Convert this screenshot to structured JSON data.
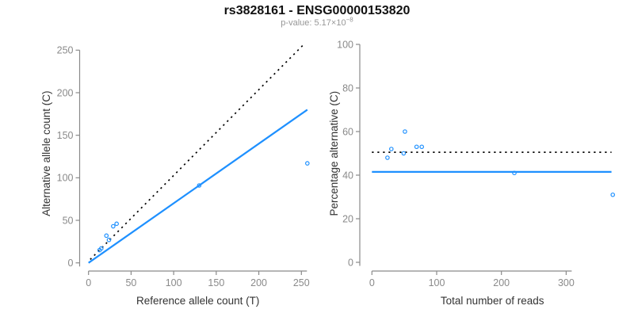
{
  "header": {
    "title": "rs3828161 - ENSG00000153820",
    "p_value": {
      "text": "p-value: 5.17×10",
      "exponent": "−8"
    }
  },
  "colors": {
    "accent_blue": "#1E90FF",
    "line_black": "#000000",
    "axis_gray": "#8A8A8A",
    "tick_label_gray": "#8A8A8A",
    "axis_title_gray": "#333333",
    "subtitle_gray": "#979797"
  },
  "chart_data": [
    {
      "type": "scatter",
      "panel": "allele-counts",
      "xlabel": "Reference allele count (T)",
      "ylabel": "Alternative allele count (C)",
      "xlim": [
        0,
        257
      ],
      "ylim": [
        0,
        257
      ],
      "xticks": [
        0,
        50,
        100,
        150,
        200,
        250
      ],
      "yticks": [
        0,
        50,
        100,
        150,
        200,
        250
      ],
      "grid": false,
      "points": [
        [
          13,
          15
        ],
        [
          15,
          17
        ],
        [
          21,
          32
        ],
        [
          24,
          27
        ],
        [
          29,
          43
        ],
        [
          33,
          46
        ],
        [
          130,
          91
        ],
        [
          257,
          117
        ]
      ],
      "point_style": {
        "marker": "open-circle",
        "color": "#1E90FF"
      },
      "lines": [
        {
          "name": "identity-line",
          "style": "dotted",
          "color": "#000000",
          "from": [
            2,
            4
          ],
          "to": [
            254,
            258
          ]
        },
        {
          "name": "regression-line",
          "style": "solid",
          "color": "#1E90FF",
          "from": [
            0,
            0
          ],
          "to": [
            257,
            180
          ]
        }
      ]
    },
    {
      "type": "scatter",
      "panel": "percentage-vs-coverage",
      "xlabel": "Total number of reads",
      "ylabel": "Percentage alternative (C)",
      "xlim": [
        0,
        372
      ],
      "ylim": [
        0,
        100
      ],
      "xticks": [
        0,
        100,
        200,
        300
      ],
      "yticks": [
        0,
        20,
        40,
        60,
        80,
        100
      ],
      "grid": false,
      "points": [
        [
          24,
          48
        ],
        [
          30,
          52
        ],
        [
          49,
          50
        ],
        [
          51,
          60
        ],
        [
          69,
          53
        ],
        [
          77,
          53
        ],
        [
          220,
          41
        ],
        [
          372,
          31
        ]
      ],
      "point_style": {
        "marker": "open-circle",
        "color": "#1E90FF"
      },
      "lines": [
        {
          "name": "expected-percentage-line",
          "style": "dotted",
          "color": "#000000",
          "from": [
            0,
            50.5
          ],
          "to": [
            370,
            50.5
          ]
        },
        {
          "name": "observed-percentage-line",
          "style": "solid",
          "color": "#1E90FF",
          "from": [
            0,
            41.5
          ],
          "to": [
            370,
            41.5
          ]
        }
      ]
    }
  ]
}
